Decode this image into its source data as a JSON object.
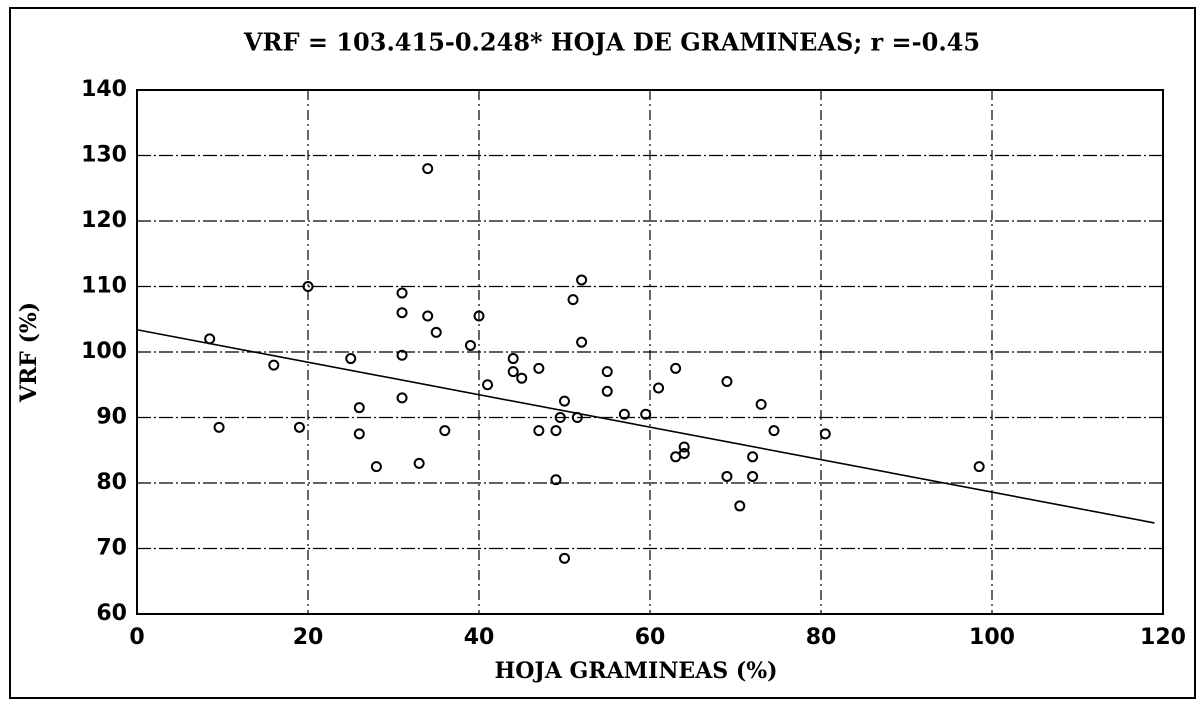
{
  "chart_data": {
    "type": "scatter",
    "title": "VRF = 103.415-0.248*  HOJA DE GRAMINEAS; r =-0.45",
    "x_label": "HOJA GRAMINEAS (%)",
    "y_label": "VRF (%)",
    "x": [
      8.5,
      9.6,
      16,
      19,
      20,
      25,
      26,
      26,
      28,
      31,
      31,
      31,
      31,
      33,
      34,
      34,
      35,
      36,
      39,
      40,
      41,
      44,
      44,
      45,
      47,
      47,
      49,
      49,
      49.5,
      50,
      50,
      51,
      51.5,
      52,
      52,
      55,
      55,
      57,
      59.5,
      61,
      63,
      63,
      64,
      64,
      69,
      69,
      70.5,
      72,
      72,
      73,
      74.5,
      80.5,
      98.5
    ],
    "values": [
      102,
      88.5,
      98,
      88.5,
      110,
      99,
      91.5,
      87.5,
      82.5,
      109,
      106,
      99.5,
      93,
      83,
      128,
      105.5,
      103,
      88,
      101,
      105.5,
      95,
      99,
      97,
      96,
      97.5,
      88,
      88,
      80.5,
      90,
      68.5,
      92.5,
      108,
      90,
      111,
      101.5,
      97,
      94,
      90.5,
      90.5,
      94.5,
      97.5,
      84,
      85.5,
      84.5,
      95.5,
      81,
      76.5,
      84,
      81,
      92,
      88,
      87.5,
      82.5
    ],
    "fit_line": {
      "x": [
        0,
        119
      ],
      "values": [
        103.4,
        73.9
      ]
    },
    "color": "#000000",
    "xlim": [
      0,
      120
    ],
    "xticks": [
      0,
      20,
      40,
      60,
      80,
      100,
      120
    ],
    "ylim": [
      60,
      140
    ],
    "yticks": [
      60,
      70,
      80,
      90,
      100,
      110,
      120,
      130,
      140
    ],
    "grid": true
  }
}
